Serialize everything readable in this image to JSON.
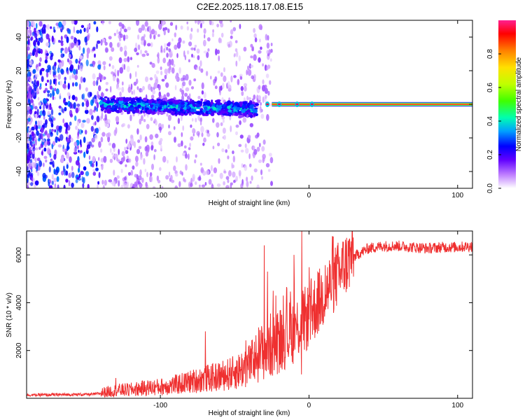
{
  "title": "C2E2.2025.118.17.08.E15",
  "chart_data": [
    {
      "type": "heatmap",
      "title": "C2E2.2025.118.17.08.E15",
      "xlabel": "Height of straight line (km)",
      "ylabel": "Frequency (Hz)",
      "xlim": [
        -190,
        110
      ],
      "ylim": [
        -50,
        50
      ],
      "xticks": [
        -100,
        0,
        100
      ],
      "yticks": [
        -40,
        -20,
        0,
        20,
        40
      ],
      "grid": false,
      "colorbar": {
        "label": "Normalized spectral amplitude",
        "range": [
          0.0,
          1.0
        ],
        "ticks": [
          0.0,
          0.2,
          0.4,
          0.6,
          0.8
        ],
        "colors": [
          "#ffffff",
          "#c080ff",
          "#6000ff",
          "#0000ff",
          "#00a0ff",
          "#00ffb0",
          "#40ff00",
          "#c0ff00",
          "#ffe000",
          "#ff8000",
          "#ff0000",
          "#ff2090"
        ]
      },
      "features": [
        {
          "name": "noise",
          "x_range": [
            -190,
            -25
          ],
          "freq_range": [
            -50,
            50
          ]
        },
        {
          "name": "spread_echo",
          "x_range": [
            -140,
            -35
          ],
          "freq_center_start": 0,
          "freq_center_end": -3,
          "amplitude": 0.4
        },
        {
          "name": "clean_line",
          "x_range": [
            -25,
            110
          ],
          "freq": 0,
          "amplitude": 0.95
        }
      ]
    },
    {
      "type": "line",
      "xlabel": "Height of straight line (km)",
      "ylabel": "SNR (10 * v/v)",
      "xlim": [
        -190,
        110
      ],
      "ylim": [
        0,
        7000
      ],
      "xticks": [
        -100,
        0,
        100
      ],
      "yticks": [
        2000,
        4000,
        6000
      ],
      "grid": false,
      "series": [
        {
          "color": "#ef3030",
          "trend": [
            [
              -190,
              130
            ],
            [
              -145,
              160
            ],
            [
              -130,
              300
            ],
            [
              -120,
              330
            ],
            [
              -110,
              400
            ],
            [
              -100,
              440
            ],
            [
              -90,
              520
            ],
            [
              -80,
              640
            ],
            [
              -70,
              760
            ],
            [
              -60,
              850
            ],
            [
              -50,
              1000
            ],
            [
              -40,
              1300
            ],
            [
              -30,
              1900
            ],
            [
              -20,
              2300
            ],
            [
              -10,
              2700
            ],
            [
              0,
              3300
            ],
            [
              10,
              4200
            ],
            [
              20,
              5100
            ],
            [
              30,
              5900
            ],
            [
              40,
              6250
            ],
            [
              50,
              6350
            ],
            [
              60,
              6350
            ],
            [
              70,
              6300
            ],
            [
              80,
              6250
            ],
            [
              90,
              6300
            ],
            [
              100,
              6300
            ],
            [
              110,
              6350
            ]
          ],
          "peaks": [
            [
              -130,
              850
            ],
            [
              -70,
              2800
            ],
            [
              -50,
              1300
            ],
            [
              -40,
              1700
            ],
            [
              -30,
              6400
            ],
            [
              -28,
              5300
            ],
            [
              -24,
              4500
            ],
            [
              -15,
              4600
            ],
            [
              -10,
              6000
            ],
            [
              -5,
              7000
            ],
            [
              -5,
              1000
            ]
          ]
        }
      ]
    }
  ]
}
